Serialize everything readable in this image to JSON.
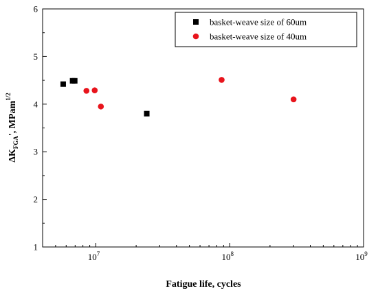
{
  "chart_data": {
    "type": "scatter",
    "xscale": "log",
    "xlim": [
      4000000,
      1000000000
    ],
    "ylim": [
      1,
      6
    ],
    "xlabel": "Fatigue life, cycles",
    "ylabel": {
      "prefix": "ΔK",
      "subscript": "FGA",
      "after": "',  MPam",
      "superscript": "1/2"
    },
    "yticks": [
      1,
      2,
      3,
      4,
      5,
      6
    ],
    "ytick_labels": [
      "1",
      "2",
      "3",
      "4",
      "5",
      "6"
    ],
    "xticks": [
      10000000,
      100000000,
      1000000000
    ],
    "xtick_labels": [
      {
        "base": "10",
        "exp": "7"
      },
      {
        "base": "10",
        "exp": "8"
      },
      {
        "base": "10",
        "exp": "9"
      }
    ],
    "grid": false,
    "legend_position": "top-right",
    "series": [
      {
        "name": "basket-weave size of 60um",
        "marker": "square",
        "color": "#000000",
        "points": [
          {
            "x": 5700000,
            "y": 4.42
          },
          {
            "x": 6700000,
            "y": 4.49
          },
          {
            "x": 6950000,
            "y": 4.49
          },
          {
            "x": 24000000,
            "y": 3.8
          }
        ]
      },
      {
        "name": "basket-weave size of 40um",
        "marker": "circle",
        "color": "#e8141c",
        "points": [
          {
            "x": 8500000,
            "y": 4.28
          },
          {
            "x": 9800000,
            "y": 4.29
          },
          {
            "x": 10900000,
            "y": 3.95
          },
          {
            "x": 87000000,
            "y": 4.51
          },
          {
            "x": 300000000,
            "y": 4.1
          }
        ]
      }
    ]
  }
}
